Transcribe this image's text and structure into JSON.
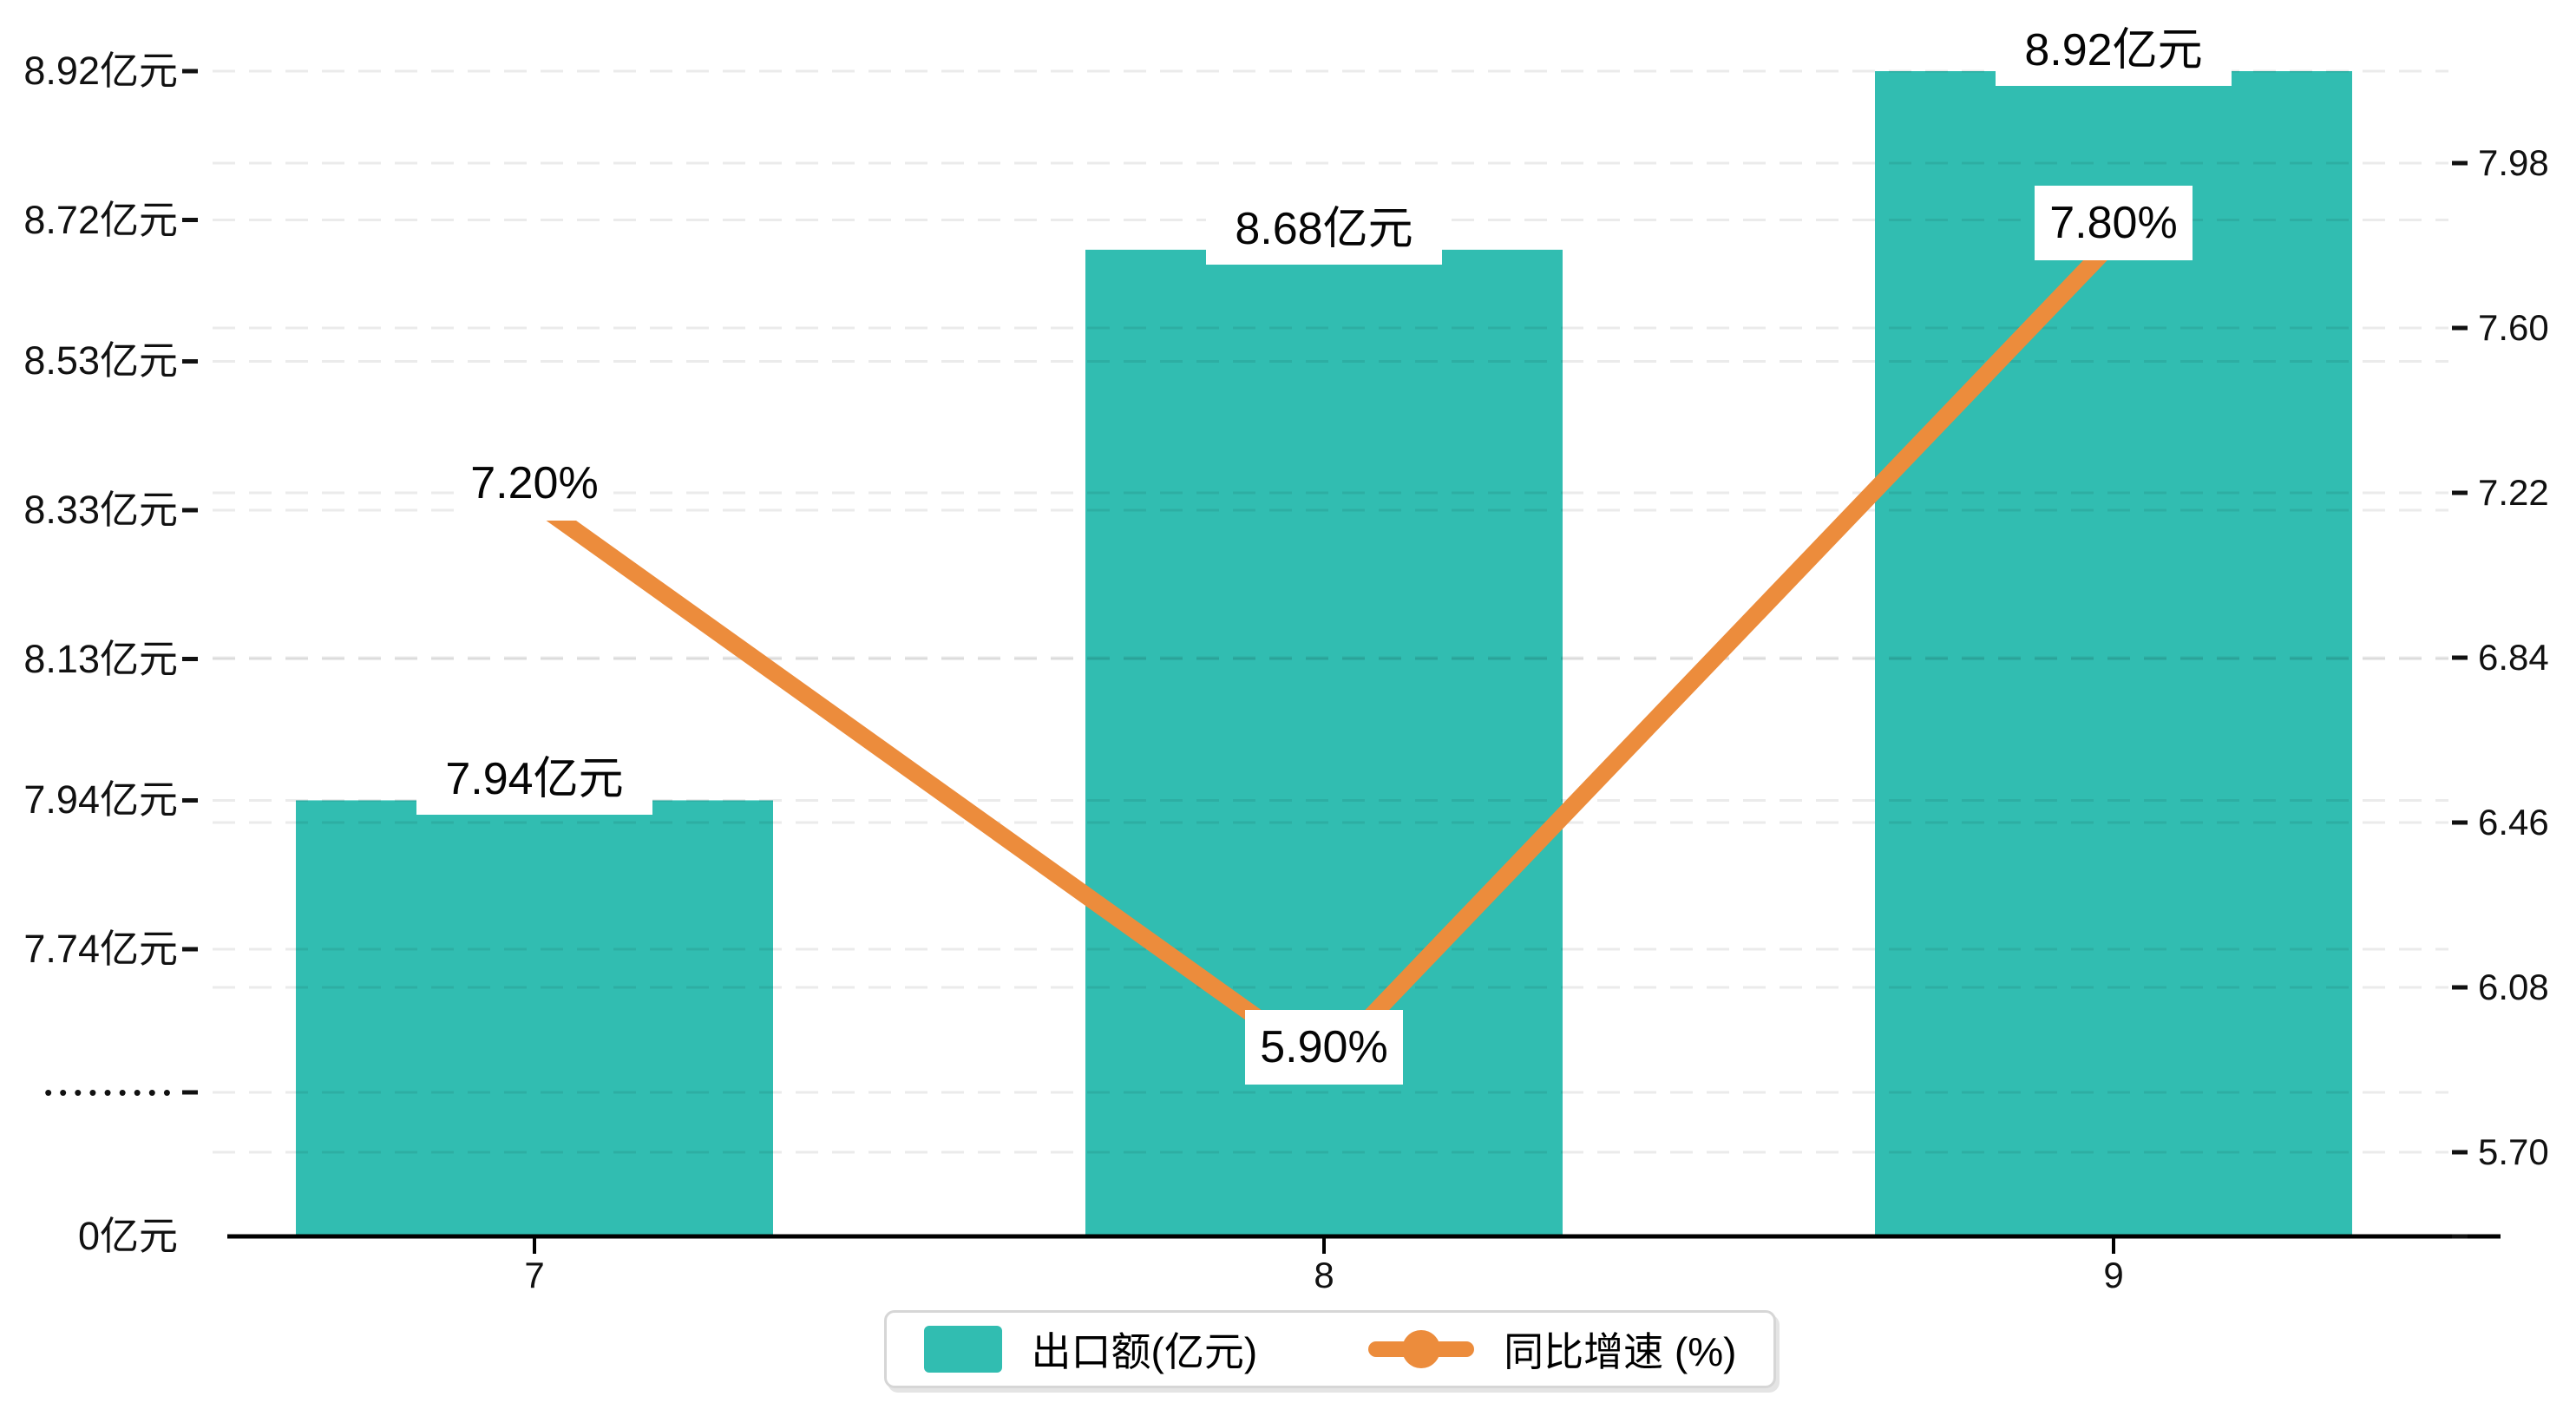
{
  "chart_data": {
    "type": "bar+line dual-axis",
    "categories": [
      "7",
      "8",
      "9"
    ],
    "series": [
      {
        "name": "出口额(亿元)",
        "type": "bar",
        "axis": "left",
        "values": [
          7.94,
          8.68,
          8.92
        ],
        "labels": [
          "7.94亿元",
          "8.68亿元",
          "8.92亿元"
        ],
        "color": "#31bdb1"
      },
      {
        "name": "同比增速 (%)",
        "type": "line",
        "axis": "right",
        "values": [
          7.2,
          5.9,
          7.8
        ],
        "labels": [
          "7.20%",
          "5.90%",
          "7.80%"
        ],
        "color": "#ec8c3c"
      }
    ],
    "left_axis": {
      "tick_labels": [
        "8.92亿元",
        "8.72亿元",
        "8.53亿元",
        "8.33亿元",
        "8.13亿元",
        "7.94亿元",
        "7.74亿元"
      ],
      "tick_values": [
        8.92,
        8.72,
        8.53,
        8.33,
        8.13,
        7.94,
        7.74
      ],
      "break_label": "•••••••••",
      "zero_label": "0亿元",
      "broken_axis": true,
      "range_shown": [
        7.74,
        8.92
      ]
    },
    "right_axis": {
      "tick_labels": [
        "7.98",
        "7.60",
        "7.22",
        "6.84",
        "6.46",
        "6.08",
        "5.70"
      ],
      "tick_values": [
        7.98,
        7.6,
        7.22,
        6.84,
        6.46,
        6.08,
        5.7
      ],
      "range": [
        5.7,
        7.98
      ]
    },
    "legend": {
      "position": "bottom",
      "items": [
        "出口额(亿元)",
        "同比增速 (%)"
      ]
    },
    "grid": "dashed horizontal gridlines for both axes",
    "title": ""
  },
  "colors": {
    "bar": "#31bdb1",
    "line": "#ec8c3c",
    "axis_line": "#000000",
    "gridline": "rgba(0,0,0,0.08)",
    "text": "#111111"
  }
}
